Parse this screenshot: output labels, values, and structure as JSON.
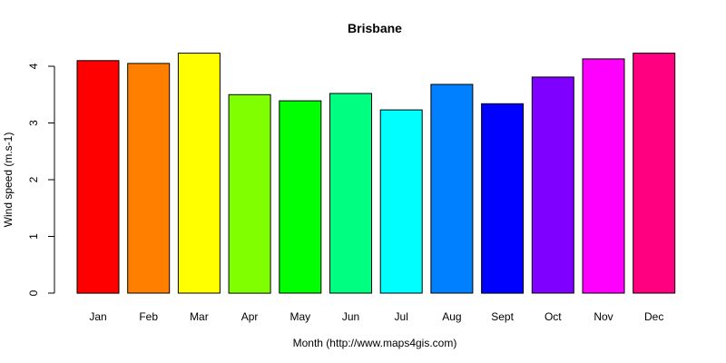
{
  "chart_data": {
    "type": "bar",
    "title": "Brisbane",
    "xlabel": "Month (http://www.maps4gis.com)",
    "ylabel": "Wind speed (m.s-1)",
    "categories": [
      "Jan",
      "Feb",
      "Mar",
      "Apr",
      "May",
      "Jun",
      "Jul",
      "Aug",
      "Sept",
      "Oct",
      "Nov",
      "Dec"
    ],
    "values": [
      4.1,
      4.05,
      4.23,
      3.5,
      3.39,
      3.52,
      3.23,
      3.68,
      3.34,
      3.81,
      4.13,
      4.23
    ],
    "colors": [
      "#ff0000",
      "#ff8000",
      "#ffff00",
      "#80ff00",
      "#00ff00",
      "#00ff80",
      "#00ffff",
      "#0080ff",
      "#0000ff",
      "#8000ff",
      "#ff00ff",
      "#ff0080"
    ],
    "yticks": [
      "0",
      "1",
      "2",
      "3",
      "4"
    ],
    "ylim": [
      0,
      4.3
    ],
    "grid": false,
    "legend": "none"
  }
}
